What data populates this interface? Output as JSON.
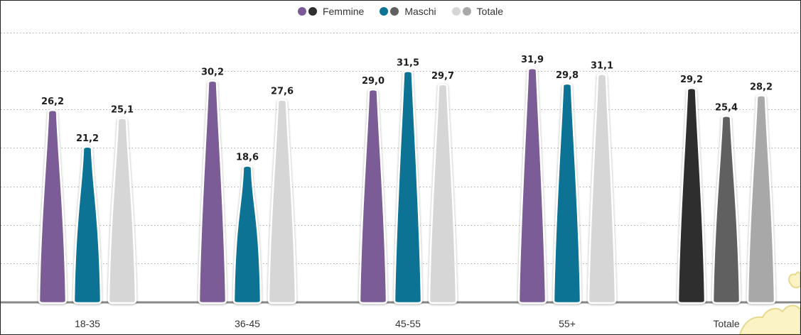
{
  "chart_data": {
    "type": "bar",
    "categories": [
      "18-35",
      "36-45",
      "45-55",
      "55+",
      "Totale"
    ],
    "series": [
      {
        "name": "Femmine",
        "values": [
          26.2,
          30.2,
          29.0,
          31.9,
          29.2
        ],
        "labels": [
          "26,2",
          "30,2",
          "29,0",
          "31,9",
          "29,2"
        ]
      },
      {
        "name": "Maschi",
        "values": [
          21.2,
          18.6,
          31.5,
          29.8,
          25.4
        ],
        "labels": [
          "21,2",
          "18,6",
          "31,5",
          "29,8",
          "25,4"
        ]
      },
      {
        "name": "Totale",
        "values": [
          25.1,
          27.6,
          29.7,
          31.1,
          28.2
        ],
        "labels": [
          "25,1",
          "27,6",
          "29,7",
          "31,1",
          "28,2"
        ]
      }
    ],
    "ylim": [
      0,
      35
    ],
    "grid": true,
    "legend": "top-center",
    "colors": {
      "femmine": "#7b5b97",
      "maschi": "#0e7394",
      "totale": "#d6d6d6",
      "totale_group_femmine": "#2f2f2f",
      "totale_group_maschi": "#606060",
      "totale_group_totale": "#a8a8a8",
      "baseline": "#888888",
      "grid": "#aaaaaa"
    }
  },
  "legend": {
    "items": [
      {
        "label": "Femmine",
        "color_a": "#7b5b97",
        "color_b": "#2f2f2f"
      },
      {
        "label": "Maschi",
        "color_a": "#0e7394",
        "color_b": "#606060"
      },
      {
        "label": "Totale",
        "color_a": "#d6d6d6",
        "color_b": "#a8a8a8"
      }
    ]
  }
}
